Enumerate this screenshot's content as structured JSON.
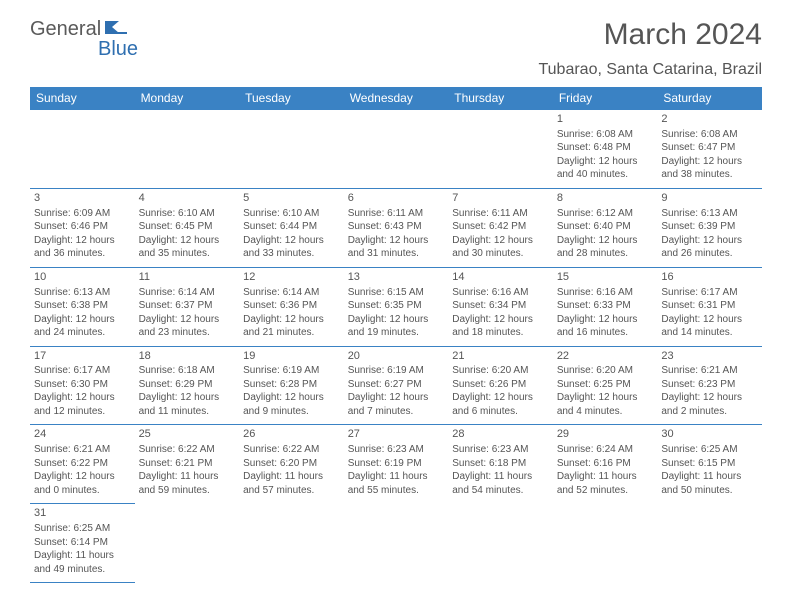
{
  "logo": {
    "general": "General",
    "blue": "Blue"
  },
  "title": "March 2024",
  "location": "Tubarao, Santa Catarina, Brazil",
  "colors": {
    "header_bg": "#3a82c4",
    "header_text": "#ffffff",
    "border": "#3a82c4",
    "body_text": "#555555",
    "logo_blue": "#2f6fb0",
    "background": "#ffffff"
  },
  "typography": {
    "title_fontsize": 30,
    "location_fontsize": 16,
    "day_header_fontsize": 12,
    "cell_fontsize": 10
  },
  "day_headers": [
    "Sunday",
    "Monday",
    "Tuesday",
    "Wednesday",
    "Thursday",
    "Friday",
    "Saturday"
  ],
  "weeks": [
    [
      null,
      null,
      null,
      null,
      null,
      {
        "n": "1",
        "sr": "Sunrise: 6:08 AM",
        "ss": "Sunset: 6:48 PM",
        "dl": "Daylight: 12 hours and 40 minutes."
      },
      {
        "n": "2",
        "sr": "Sunrise: 6:08 AM",
        "ss": "Sunset: 6:47 PM",
        "dl": "Daylight: 12 hours and 38 minutes."
      }
    ],
    [
      {
        "n": "3",
        "sr": "Sunrise: 6:09 AM",
        "ss": "Sunset: 6:46 PM",
        "dl": "Daylight: 12 hours and 36 minutes."
      },
      {
        "n": "4",
        "sr": "Sunrise: 6:10 AM",
        "ss": "Sunset: 6:45 PM",
        "dl": "Daylight: 12 hours and 35 minutes."
      },
      {
        "n": "5",
        "sr": "Sunrise: 6:10 AM",
        "ss": "Sunset: 6:44 PM",
        "dl": "Daylight: 12 hours and 33 minutes."
      },
      {
        "n": "6",
        "sr": "Sunrise: 6:11 AM",
        "ss": "Sunset: 6:43 PM",
        "dl": "Daylight: 12 hours and 31 minutes."
      },
      {
        "n": "7",
        "sr": "Sunrise: 6:11 AM",
        "ss": "Sunset: 6:42 PM",
        "dl": "Daylight: 12 hours and 30 minutes."
      },
      {
        "n": "8",
        "sr": "Sunrise: 6:12 AM",
        "ss": "Sunset: 6:40 PM",
        "dl": "Daylight: 12 hours and 28 minutes."
      },
      {
        "n": "9",
        "sr": "Sunrise: 6:13 AM",
        "ss": "Sunset: 6:39 PM",
        "dl": "Daylight: 12 hours and 26 minutes."
      }
    ],
    [
      {
        "n": "10",
        "sr": "Sunrise: 6:13 AM",
        "ss": "Sunset: 6:38 PM",
        "dl": "Daylight: 12 hours and 24 minutes."
      },
      {
        "n": "11",
        "sr": "Sunrise: 6:14 AM",
        "ss": "Sunset: 6:37 PM",
        "dl": "Daylight: 12 hours and 23 minutes."
      },
      {
        "n": "12",
        "sr": "Sunrise: 6:14 AM",
        "ss": "Sunset: 6:36 PM",
        "dl": "Daylight: 12 hours and 21 minutes."
      },
      {
        "n": "13",
        "sr": "Sunrise: 6:15 AM",
        "ss": "Sunset: 6:35 PM",
        "dl": "Daylight: 12 hours and 19 minutes."
      },
      {
        "n": "14",
        "sr": "Sunrise: 6:16 AM",
        "ss": "Sunset: 6:34 PM",
        "dl": "Daylight: 12 hours and 18 minutes."
      },
      {
        "n": "15",
        "sr": "Sunrise: 6:16 AM",
        "ss": "Sunset: 6:33 PM",
        "dl": "Daylight: 12 hours and 16 minutes."
      },
      {
        "n": "16",
        "sr": "Sunrise: 6:17 AM",
        "ss": "Sunset: 6:31 PM",
        "dl": "Daylight: 12 hours and 14 minutes."
      }
    ],
    [
      {
        "n": "17",
        "sr": "Sunrise: 6:17 AM",
        "ss": "Sunset: 6:30 PM",
        "dl": "Daylight: 12 hours and 12 minutes."
      },
      {
        "n": "18",
        "sr": "Sunrise: 6:18 AM",
        "ss": "Sunset: 6:29 PM",
        "dl": "Daylight: 12 hours and 11 minutes."
      },
      {
        "n": "19",
        "sr": "Sunrise: 6:19 AM",
        "ss": "Sunset: 6:28 PM",
        "dl": "Daylight: 12 hours and 9 minutes."
      },
      {
        "n": "20",
        "sr": "Sunrise: 6:19 AM",
        "ss": "Sunset: 6:27 PM",
        "dl": "Daylight: 12 hours and 7 minutes."
      },
      {
        "n": "21",
        "sr": "Sunrise: 6:20 AM",
        "ss": "Sunset: 6:26 PM",
        "dl": "Daylight: 12 hours and 6 minutes."
      },
      {
        "n": "22",
        "sr": "Sunrise: 6:20 AM",
        "ss": "Sunset: 6:25 PM",
        "dl": "Daylight: 12 hours and 4 minutes."
      },
      {
        "n": "23",
        "sr": "Sunrise: 6:21 AM",
        "ss": "Sunset: 6:23 PM",
        "dl": "Daylight: 12 hours and 2 minutes."
      }
    ],
    [
      {
        "n": "24",
        "sr": "Sunrise: 6:21 AM",
        "ss": "Sunset: 6:22 PM",
        "dl": "Daylight: 12 hours and 0 minutes."
      },
      {
        "n": "25",
        "sr": "Sunrise: 6:22 AM",
        "ss": "Sunset: 6:21 PM",
        "dl": "Daylight: 11 hours and 59 minutes."
      },
      {
        "n": "26",
        "sr": "Sunrise: 6:22 AM",
        "ss": "Sunset: 6:20 PM",
        "dl": "Daylight: 11 hours and 57 minutes."
      },
      {
        "n": "27",
        "sr": "Sunrise: 6:23 AM",
        "ss": "Sunset: 6:19 PM",
        "dl": "Daylight: 11 hours and 55 minutes."
      },
      {
        "n": "28",
        "sr": "Sunrise: 6:23 AM",
        "ss": "Sunset: 6:18 PM",
        "dl": "Daylight: 11 hours and 54 minutes."
      },
      {
        "n": "29",
        "sr": "Sunrise: 6:24 AM",
        "ss": "Sunset: 6:16 PM",
        "dl": "Daylight: 11 hours and 52 minutes."
      },
      {
        "n": "30",
        "sr": "Sunrise: 6:25 AM",
        "ss": "Sunset: 6:15 PM",
        "dl": "Daylight: 11 hours and 50 minutes."
      }
    ],
    [
      {
        "n": "31",
        "sr": "Sunrise: 6:25 AM",
        "ss": "Sunset: 6:14 PM",
        "dl": "Daylight: 11 hours and 49 minutes."
      },
      null,
      null,
      null,
      null,
      null,
      null
    ]
  ]
}
